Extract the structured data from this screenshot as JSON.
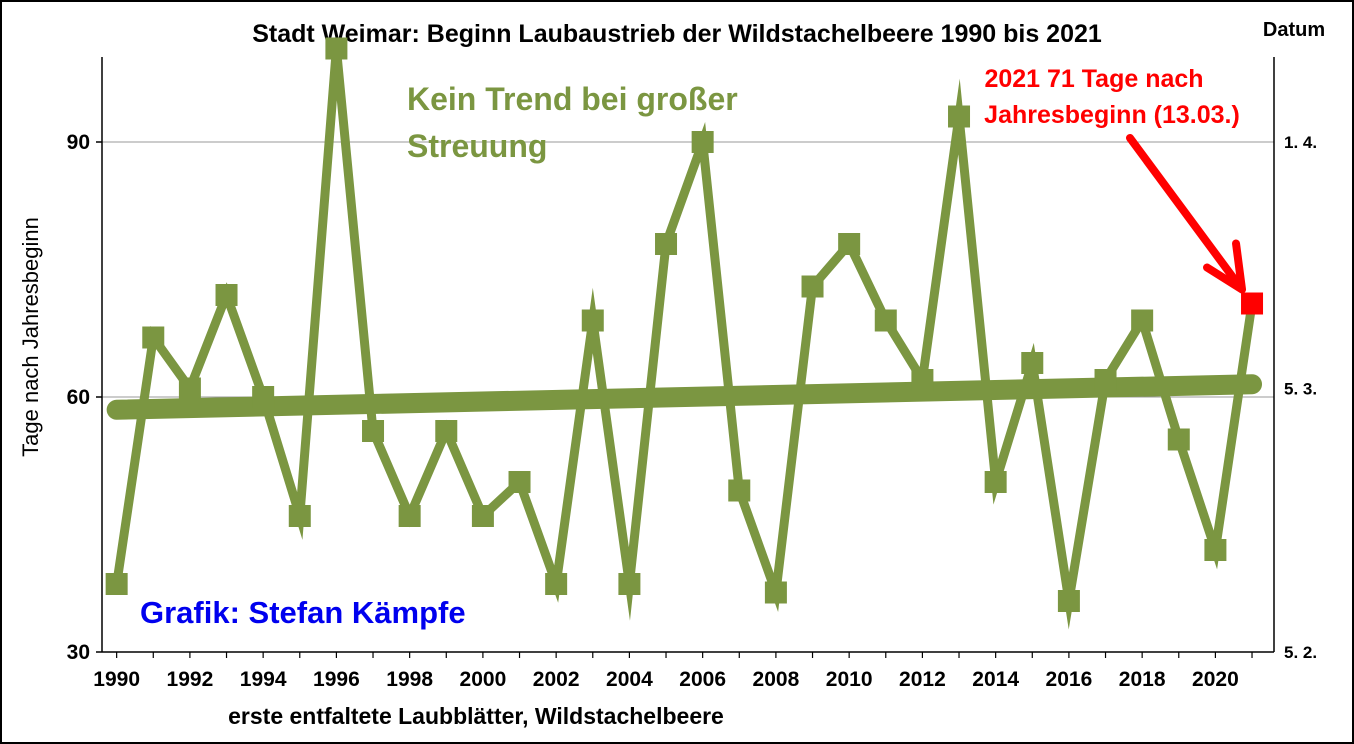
{
  "chart_data": {
    "type": "line",
    "title": "Stadt Weimar: Beginn Laubaustrieb der Wildstachelbeere 1990 bis 2021",
    "xlabel": "erste entfaltete Laubblätter, Wildstachelbeere",
    "ylabel": "Tage nach Jahresbeginn",
    "ylim": [
      30,
      100
    ],
    "yticks": [
      30,
      60,
      90
    ],
    "xlim": [
      1989.6,
      2021.6
    ],
    "xticks": [
      1990,
      1992,
      1994,
      1996,
      1998,
      2000,
      2002,
      2004,
      2006,
      2008,
      2010,
      2012,
      2014,
      2016,
      2018,
      2020
    ],
    "grid": "horizontal",
    "right_axis": {
      "title": "Datum",
      "ticks": [
        {
          "value": 90,
          "label": "1. 4."
        },
        {
          "value": 61,
          "label": "5. 3."
        },
        {
          "value": 30,
          "label": "5. 2."
        }
      ]
    },
    "series": {
      "x": [
        1990,
        1991,
        1992,
        1993,
        1994,
        1995,
        1996,
        1997,
        1998,
        1999,
        2000,
        2001,
        2002,
        2003,
        2004,
        2005,
        2006,
        2007,
        2008,
        2009,
        2010,
        2011,
        2012,
        2013,
        2014,
        2015,
        2016,
        2017,
        2018,
        2019,
        2020,
        2021
      ],
      "y": [
        38,
        67,
        61,
        72,
        60,
        46,
        101,
        56,
        46,
        56,
        46,
        50,
        38,
        69,
        38,
        78,
        90,
        49,
        37,
        73,
        78,
        69,
        62,
        93,
        50,
        64,
        36,
        62,
        69,
        55,
        42,
        71
      ],
      "color": "#7b9641"
    },
    "trend": {
      "x": [
        1990,
        2021
      ],
      "y": [
        58.5,
        61.5
      ],
      "color": "#7b9641"
    },
    "highlight": {
      "x": 2021,
      "y": 71,
      "color": "#ff0000"
    }
  },
  "annotations": {
    "trend_note": [
      "Kein Trend bei großer",
      "Streuung"
    ],
    "highlight_note": [
      "2021 71 Tage nach",
      "Jahresbeginn (13.03.)"
    ],
    "credit": "Grafik: Stefan Kämpfe"
  },
  "colors": {
    "series": "#7b9641",
    "highlight": "#ff0000",
    "credit": "#0000ee",
    "grid": "#999999"
  }
}
